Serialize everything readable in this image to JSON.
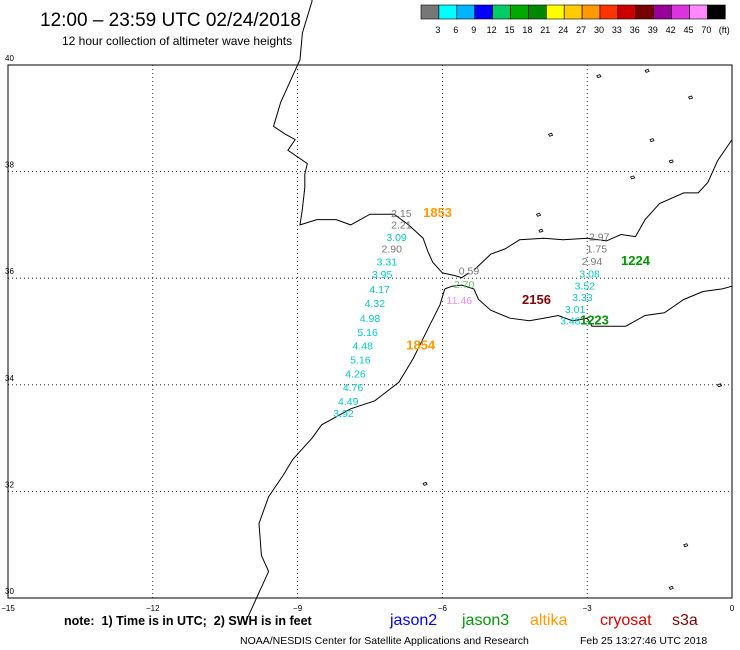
{
  "header": {
    "title": "12:00 – 23:59 UTC 02/24/2018",
    "subtitle": "12 hour collection of altimeter wave heights"
  },
  "colorbar": {
    "colors": [
      "#777777",
      "#00ffff",
      "#00b4ff",
      "#0000ff",
      "#00cc66",
      "#00aa00",
      "#008800",
      "#ffff00",
      "#ffcc00",
      "#ff9900",
      "#ff3300",
      "#cc0000",
      "#770000",
      "#990099",
      "#dd33dd",
      "#ff88ff",
      "#000000"
    ],
    "labels": [
      "3",
      "6",
      "9",
      "12",
      "15",
      "18",
      "21",
      "24",
      "27",
      "30",
      "33",
      "36",
      "39",
      "42",
      "45",
      "70",
      "(ft)"
    ]
  },
  "map": {
    "lat_ticks": [
      "40",
      "38",
      "36",
      "34",
      "32",
      "30"
    ],
    "lon_ticks": [
      "−15",
      "−12",
      "−9",
      "−6",
      "−3",
      "0"
    ],
    "grid": true,
    "extent": {
      "lon": [
        -15,
        0
      ],
      "lat": [
        30,
        40
      ]
    }
  },
  "satellites": {
    "jason2": {
      "name": "jason2",
      "color": "#0000ff"
    },
    "jason3": {
      "name": "jason3",
      "color": "#009900"
    },
    "altika": {
      "name": "altika",
      "color": "#ff9900"
    },
    "cryosat": {
      "name": "cryosat",
      "color": "#dd0000"
    },
    "s3a": {
      "name": "s3a",
      "color": "#880000"
    }
  },
  "observations": [
    {
      "lon": -6.85,
      "lat": 37.15,
      "value": "2.15",
      "color": "#777777"
    },
    {
      "lon": -6.85,
      "lat": 36.93,
      "value": "2.21",
      "color": "#777777"
    },
    {
      "lon": -6.95,
      "lat": 36.7,
      "value": "3.09",
      "color": "#00cccc"
    },
    {
      "lon": -7.05,
      "lat": 36.48,
      "value": "2.90",
      "color": "#777777"
    },
    {
      "lon": -7.15,
      "lat": 36.24,
      "value": "3.31",
      "color": "#00cccc"
    },
    {
      "lon": -7.25,
      "lat": 36.0,
      "value": "3.95",
      "color": "#00cccc"
    },
    {
      "lon": -7.3,
      "lat": 35.72,
      "value": "4.17",
      "color": "#00cccc"
    },
    {
      "lon": -7.4,
      "lat": 35.46,
      "value": "4.32",
      "color": "#00cccc"
    },
    {
      "lon": -7.5,
      "lat": 35.18,
      "value": "4.98",
      "color": "#00cccc"
    },
    {
      "lon": -7.55,
      "lat": 34.92,
      "value": "5.16",
      "color": "#00cccc"
    },
    {
      "lon": -7.65,
      "lat": 34.66,
      "value": "4.48",
      "color": "#00cccc"
    },
    {
      "lon": -7.7,
      "lat": 34.4,
      "value": "5.16",
      "color": "#00cccc"
    },
    {
      "lon": -7.8,
      "lat": 34.14,
      "value": "4.26",
      "color": "#00cccc"
    },
    {
      "lon": -7.85,
      "lat": 33.88,
      "value": "4.76",
      "color": "#00cccc"
    },
    {
      "lon": -7.95,
      "lat": 33.62,
      "value": "4.49",
      "color": "#00cccc"
    },
    {
      "lon": -8.05,
      "lat": 33.4,
      "value": "3.92",
      "color": "#00cccc"
    },
    {
      "lon": -5.45,
      "lat": 36.07,
      "value": "0.59",
      "color": "#777777"
    },
    {
      "lon": -5.55,
      "lat": 35.82,
      "value": "2.70",
      "color": "#66cc66"
    },
    {
      "lon": -5.65,
      "lat": 35.52,
      "value": "11.46",
      "color": "#ee88ee"
    },
    {
      "lon": -2.75,
      "lat": 36.71,
      "value": "2.97",
      "color": "#777777"
    },
    {
      "lon": -2.8,
      "lat": 36.48,
      "value": "1.75",
      "color": "#777777"
    },
    {
      "lon": -2.9,
      "lat": 36.25,
      "value": "2.94",
      "color": "#777777"
    },
    {
      "lon": -2.95,
      "lat": 36.01,
      "value": "3.08",
      "color": "#00cccc"
    },
    {
      "lon": -3.05,
      "lat": 35.79,
      "value": "3.52",
      "color": "#00cccc"
    },
    {
      "lon": -3.1,
      "lat": 35.57,
      "value": "3.33",
      "color": "#00cccc"
    },
    {
      "lon": -3.25,
      "lat": 35.35,
      "value": "3.01",
      "color": "#00cccc"
    },
    {
      "lon": -3.35,
      "lat": 35.13,
      "value": "3.48",
      "color": "#00cccc"
    }
  ],
  "time_labels": [
    {
      "lon": -6.1,
      "lat": 37.15,
      "value": "1853",
      "color": "#ff9900"
    },
    {
      "lon": -6.45,
      "lat": 34.66,
      "value": "1854",
      "color": "#ff9900"
    },
    {
      "lon": -4.05,
      "lat": 35.52,
      "value": "2156",
      "color": "#880000"
    },
    {
      "lon": -2.0,
      "lat": 36.25,
      "value": "1224",
      "color": "#009900"
    },
    {
      "lon": -2.85,
      "lat": 35.13,
      "value": "1223",
      "color": "#009900"
    }
  ],
  "footer": {
    "note": "note:  1) Time is in UTC;  2) SWH is in feet",
    "credit": "NOAA/NESDIS Center for Satellite Applications and Research",
    "timestamp": "Feb 25 13:27:46 UTC 2018"
  }
}
